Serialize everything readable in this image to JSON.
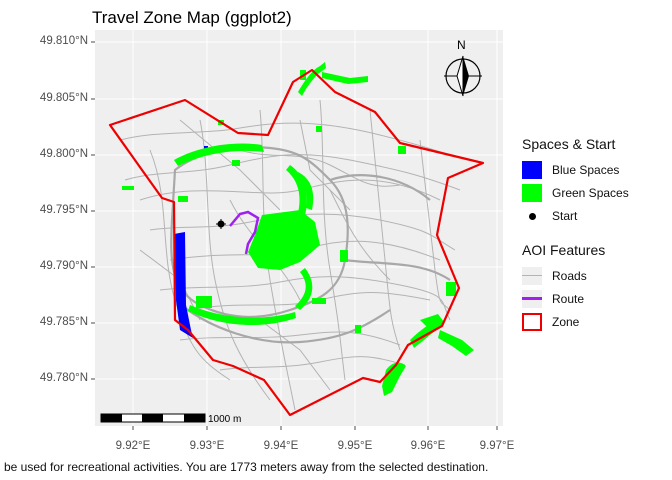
{
  "title": "Travel Zone Map (ggplot2)",
  "caption": "be used for recreational activities. You are 1773 meters away from the selected destination.",
  "y_ticks": [
    "49.810°N",
    "49.805°N",
    "49.800°N",
    "49.795°N",
    "49.790°N",
    "49.785°N",
    "49.780°N"
  ],
  "x_ticks": [
    "9.92°E",
    "9.93°E",
    "9.94°E",
    "9.95°E",
    "9.96°E",
    "9.97°E"
  ],
  "scale_bar_label": "1000 m",
  "north_label": "N",
  "legend": {
    "spaces_title": "Spaces & Start",
    "spaces_items": [
      "Blue Spaces",
      "Green Spaces",
      "Start"
    ],
    "aoi_title": "AOI Features",
    "aoi_items": [
      "Roads",
      "Route",
      "Zone"
    ]
  },
  "colors": {
    "panel": "#efefef",
    "blue_spaces": "#0000ff",
    "green_spaces": "#00ff00",
    "roads": "#b3b3b3",
    "route": "#a020f0",
    "zone": "#ee0000",
    "start": "#000000"
  }
}
